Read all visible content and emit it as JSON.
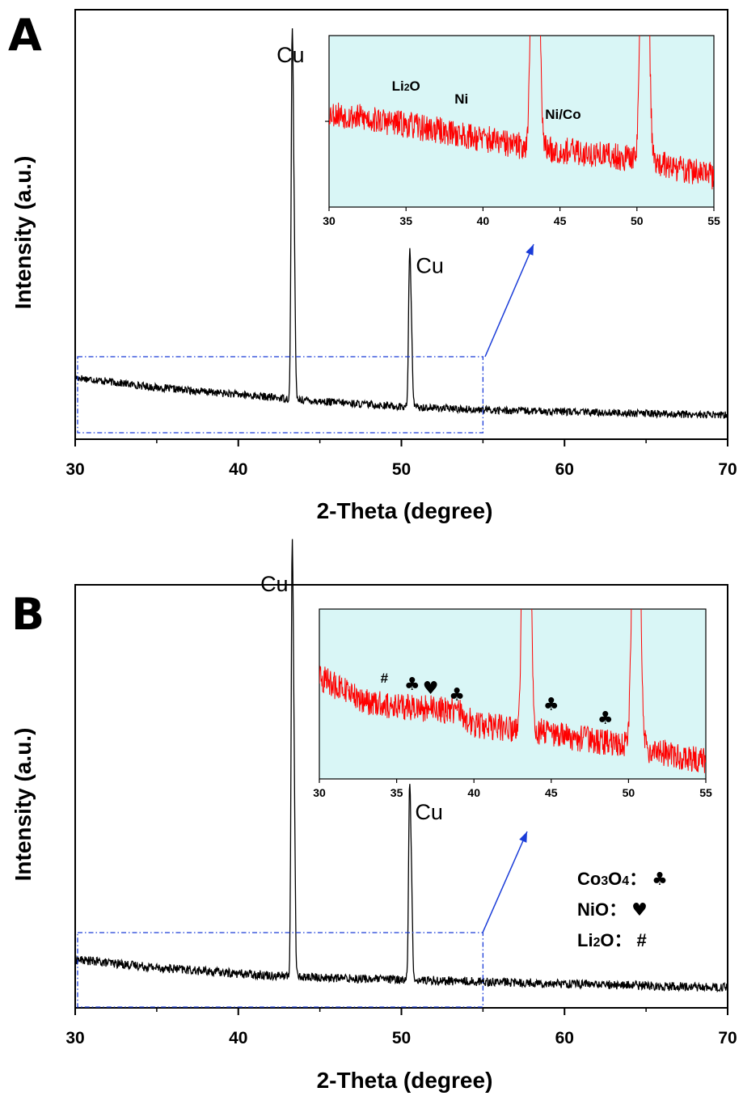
{
  "colors": {
    "main_trace": "#000000",
    "inset_trace": "#ff0000",
    "inset_bg": "#d9f6f6",
    "zoom_box": "#1a3cd8",
    "arrow": "#1a3cd8"
  },
  "chart_data": [
    {
      "panel": "A",
      "type": "line",
      "xlabel": "2-Theta (degree)",
      "ylabel": "Intensity (a.u.)",
      "xlim": [
        30,
        70
      ],
      "xticks": [
        30,
        40,
        50,
        60,
        70
      ],
      "x_minor_step": 5,
      "series": [
        {
          "color": "#000000",
          "baseline": {
            "x": [
              30,
              35,
              40,
              45,
              50,
              55,
              60,
              65,
              70
            ],
            "y": [
              0.13,
              0.1,
              0.08,
              0.06,
              0.045,
              0.035,
              0.03,
              0.025,
              0.02
            ]
          },
          "peaks": [
            {
              "x": 43.3,
              "y": 1.0
            },
            {
              "x": 50.5,
              "y": 0.42
            }
          ]
        }
      ],
      "ylim": [
        -0.05,
        1.2
      ],
      "annotations": [
        {
          "text": "Cu",
          "x": 43.3
        },
        {
          "text": "Cu",
          "x": 50.5
        }
      ],
      "zoom_box": {
        "xlim": [
          30,
          55
        ]
      },
      "inset": {
        "xlim": [
          30,
          55
        ],
        "xticks": [
          30,
          35,
          40,
          45,
          50,
          55
        ],
        "series": [
          {
            "color": "#ff0000",
            "baseline": {
              "x": [
                30,
                35,
                40,
                42,
                45,
                50,
                55
              ],
              "y": [
                0.55,
                0.48,
                0.4,
                0.36,
                0.33,
                0.28,
                0.18
              ]
            }
          }
        ],
        "peaks": [
          {
            "x": 43.4
          },
          {
            "x": 50.5
          }
        ],
        "ylim": [
          0,
          1
        ],
        "annotations": [
          {
            "text": "Li2O",
            "x": 35
          },
          {
            "text": "Ni",
            "x": 38.6
          },
          {
            "text": "Ni/Co",
            "x": 45.2
          }
        ]
      }
    },
    {
      "panel": "B",
      "type": "line",
      "xlabel": "2-Theta (degree)",
      "ylabel": "Intensity (a.u.)",
      "xlim": [
        30,
        70
      ],
      "xticks": [
        30,
        40,
        50,
        60,
        70
      ],
      "x_minor_step": 5,
      "series": [
        {
          "color": "#000000",
          "baseline": {
            "x": [
              30,
              35,
              40,
              45,
              50,
              55,
              60,
              65,
              70
            ],
            "y": [
              0.09,
              0.07,
              0.055,
              0.045,
              0.04,
              0.035,
              0.03,
              0.025,
              0.02
            ]
          },
          "peaks": [
            {
              "x": 43.3,
              "y": 1.0
            },
            {
              "x": 50.5,
              "y": 0.45
            }
          ]
        }
      ],
      "ylim": [
        -0.03,
        1.02
      ],
      "annotations": [
        {
          "text": "Cu",
          "x": 43.3
        },
        {
          "text": "Cu",
          "x": 50.5
        }
      ],
      "zoom_box": {
        "xlim": [
          30,
          55
        ]
      },
      "inset": {
        "xlim": [
          30,
          55
        ],
        "xticks": [
          30,
          35,
          40,
          45,
          50,
          55
        ],
        "series": [
          {
            "color": "#ff0000",
            "baseline": {
              "x": [
                30,
                33,
                36,
                39,
                40,
                42,
                45,
                48,
                50,
                55
              ],
              "y": [
                0.6,
                0.45,
                0.42,
                0.4,
                0.32,
                0.3,
                0.27,
                0.22,
                0.2,
                0.1
              ]
            }
          }
        ],
        "peaks": [
          {
            "x": 43.4
          },
          {
            "x": 50.5
          }
        ],
        "ylim": [
          0,
          1
        ],
        "annotations": [
          {
            "text": "#",
            "x": 34.2
          },
          {
            "text": "♣",
            "x": 36.0
          },
          {
            "text": "♥",
            "x": 37.2
          },
          {
            "text": "♣",
            "x": 38.9
          },
          {
            "text": "♣",
            "x": 45.0
          },
          {
            "text": "♣",
            "x": 48.5
          }
        ]
      },
      "legend": [
        {
          "label": "Co3O4",
          "symbol": "♣"
        },
        {
          "label": "NiO",
          "symbol": "♥"
        },
        {
          "label": "Li2O",
          "symbol": "#"
        }
      ]
    }
  ]
}
